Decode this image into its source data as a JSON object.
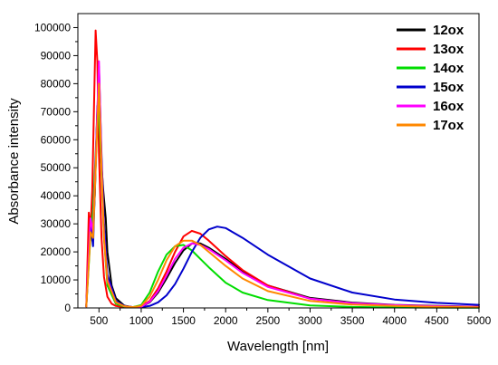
{
  "chart_data": {
    "type": "line",
    "xlabel": "Wavelength [nm]",
    "ylabel": "Absorbance intensity",
    "xlim": [
      250,
      5000
    ],
    "ylim": [
      0,
      105000
    ],
    "x_ticks": [
      500,
      1000,
      1500,
      2000,
      2500,
      3000,
      3500,
      4000,
      4500,
      5000
    ],
    "y_ticks": [
      0,
      10000,
      20000,
      30000,
      40000,
      50000,
      60000,
      70000,
      80000,
      90000,
      100000
    ],
    "grid": false,
    "legend_position": "top-right",
    "series": [
      {
        "name": "12ox",
        "color": "#000000",
        "x": [
          350,
          380,
          400,
          420,
          450,
          480,
          500,
          520,
          550,
          580,
          600,
          650,
          700,
          800,
          900,
          1000,
          1100,
          1200,
          1300,
          1400,
          1500,
          1600,
          1700,
          1800,
          2000,
          2200,
          2500,
          3000,
          3500,
          4000,
          4500,
          5000
        ],
        "y": [
          500,
          20000,
          28000,
          24000,
          40000,
          72000,
          73000,
          55000,
          42000,
          32000,
          20000,
          8000,
          3500,
          800,
          300,
          400,
          2000,
          5500,
          10500,
          16000,
          20500,
          23000,
          23000,
          21500,
          17500,
          13000,
          8000,
          3600,
          1900,
          1100,
          700,
          450
        ]
      },
      {
        "name": "13ox",
        "color": "#ff0000",
        "x": [
          350,
          380,
          400,
          420,
          440,
          460,
          480,
          500,
          530,
          560,
          600,
          650,
          700,
          800,
          900,
          1000,
          1100,
          1200,
          1300,
          1400,
          1500,
          1600,
          1700,
          1800,
          2000,
          2200,
          2500,
          3000,
          3500,
          4000,
          4500,
          5000
        ],
        "y": [
          500,
          34000,
          28000,
          42000,
          70000,
          99000,
          88000,
          55000,
          25000,
          11000,
          4000,
          1500,
          700,
          300,
          300,
          600,
          2500,
          7000,
          13000,
          20000,
          25500,
          27500,
          26500,
          24000,
          18500,
          13500,
          8000,
          3300,
          1600,
          900,
          550,
          350
        ]
      },
      {
        "name": "14ox",
        "color": "#00dd00",
        "x": [
          350,
          400,
          430,
          460,
          490,
          520,
          560,
          600,
          700,
          800,
          900,
          1000,
          1100,
          1200,
          1300,
          1400,
          1500,
          1600,
          1700,
          1800,
          2000,
          2200,
          2500,
          3000,
          3500,
          4000,
          5000
        ],
        "y": [
          500,
          26000,
          35000,
          55000,
          75000,
          56000,
          25000,
          8000,
          1500,
          500,
          300,
          1000,
          5500,
          13000,
          19000,
          22000,
          22500,
          20500,
          17500,
          14500,
          9000,
          5500,
          2800,
          900,
          350,
          150,
          50
        ]
      },
      {
        "name": "15ox",
        "color": "#0000cc",
        "x": [
          350,
          400,
          430,
          470,
          500,
          530,
          560,
          600,
          700,
          800,
          900,
          1000,
          1100,
          1200,
          1300,
          1400,
          1500,
          1600,
          1700,
          1800,
          1900,
          2000,
          2200,
          2500,
          3000,
          3500,
          4000,
          4500,
          5000
        ],
        "y": [
          500,
          30000,
          22000,
          60000,
          86000,
          55000,
          30000,
          12000,
          2500,
          700,
          300,
          300,
          700,
          2000,
          4500,
          8500,
          14000,
          20000,
          25000,
          28000,
          29000,
          28500,
          25000,
          19000,
          10500,
          5500,
          3000,
          1800,
          1100
        ]
      },
      {
        "name": "16ox",
        "color": "#ff00ff",
        "x": [
          350,
          400,
          430,
          470,
          500,
          530,
          560,
          600,
          700,
          800,
          900,
          1000,
          1100,
          1200,
          1300,
          1400,
          1500,
          1600,
          1700,
          1800,
          2000,
          2200,
          2500,
          3000,
          3500,
          4000,
          4500,
          5000
        ],
        "y": [
          500,
          32000,
          27000,
          60000,
          88000,
          52000,
          26000,
          10000,
          2000,
          600,
          300,
          400,
          2200,
          6000,
          11500,
          17500,
          21500,
          23000,
          22500,
          21000,
          17000,
          12500,
          7500,
          3300,
          1700,
          1000,
          600,
          400
        ]
      },
      {
        "name": "17ox",
        "color": "#ff8800",
        "x": [
          350,
          400,
          430,
          470,
          500,
          530,
          560,
          600,
          700,
          800,
          900,
          1000,
          1100,
          1200,
          1300,
          1400,
          1500,
          1600,
          1700,
          1800,
          2000,
          2200,
          2500,
          3000,
          3500,
          4000,
          4500,
          5000
        ],
        "y": [
          500,
          27000,
          25000,
          57000,
          80000,
          50000,
          25000,
          9500,
          2000,
          600,
          300,
          700,
          4000,
          10000,
          17000,
          22000,
          24000,
          24000,
          22500,
          20000,
          15000,
          10500,
          6000,
          2500,
          1200,
          700,
          400,
          250
        ]
      }
    ]
  }
}
